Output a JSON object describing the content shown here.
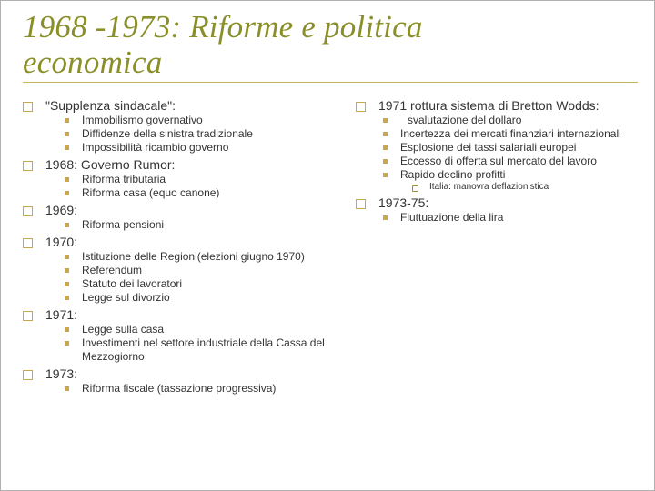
{
  "title_line1": "1968 -1973: Riforme e politica",
  "title_line2": "economica",
  "left": {
    "s0": {
      "h": "\"Supplenza sindacale\":",
      "i": [
        "Immobilismo governativo",
        "Diffidenze della sinistra tradizionale",
        "Impossibilità ricambio governo"
      ]
    },
    "s1": {
      "h": "1968: Governo Rumor:",
      "i": [
        "Riforma tributaria",
        "Riforma casa (equo canone)"
      ]
    },
    "s2": {
      "h": "1969:",
      "i": [
        "Riforma pensioni"
      ]
    },
    "s3": {
      "h": "1970:",
      "i": [
        "Istituzione delle Regioni(elezioni giugno 1970)",
        "Referendum",
        "Statuto dei lavoratori",
        "Legge sul divorzio"
      ]
    },
    "s4": {
      "h": "1971:",
      "i": [
        "Legge sulla casa",
        "Investimenti nel settore industriale della Cassa del Mezzogiorno"
      ]
    },
    "s5": {
      "h": "1973:",
      "i": [
        "Riforma fiscale (tassazione progressiva)"
      ]
    }
  },
  "right": {
    "s0": {
      "h": "1971 rottura sistema di Bretton Wodds:",
      "i": [
        " svalutazione del dollaro",
        "Incertezza dei mercati finanziari internazionali",
        "Esplosione dei tassi salariali europei",
        "Eccesso di offerta sul mercato del lavoro",
        "Rapido declino profitti"
      ],
      "sub": [
        "Italia: manovra deflazionistica"
      ]
    },
    "s1": {
      "h": "1973-75:",
      "i": [
        "Fluttuazione della lira"
      ]
    }
  },
  "colors": {
    "title": "#8a8f2a",
    "underline": "#c9b75a",
    "bullet_border": "#c9a84d",
    "bullet_fill": "#c9a84d",
    "text": "#333333",
    "frame_border": "#b0b0b0",
    "background": "#ffffff"
  },
  "fontsizes": {
    "title": 35,
    "lvl0": 14,
    "lvl1": 12,
    "lvl2": 10
  }
}
